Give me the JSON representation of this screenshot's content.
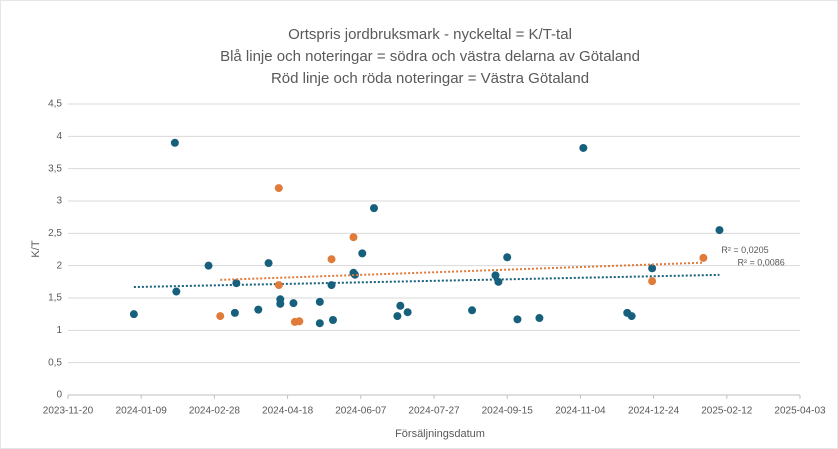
{
  "chart_data": {
    "type": "scatter",
    "title": [
      "Ortspris jordbruksmark - nyckeltal = K/T-tal",
      "Blå linje och noteringar = södra och västra delarna av Götaland",
      "Röd linje och röda noteringar = Västra Götaland"
    ],
    "x_label": "Försäljningsdatum",
    "y_label": "K/T",
    "xlim": [
      "2023-11-20",
      "2025-04-03"
    ],
    "xticks": [
      "2023-11-20",
      "2024-01-09",
      "2024-02-28",
      "2024-04-18",
      "2024-06-07",
      "2024-07-27",
      "2024-09-15",
      "2024-11-04",
      "2024-12-24",
      "2025-02-12",
      "2025-04-03"
    ],
    "ylim": [
      0,
      4.5
    ],
    "yticks": [
      0,
      {
        "value": 0.5,
        "label": "0,5"
      },
      1,
      {
        "value": 1.5,
        "label": "1,5"
      },
      2,
      {
        "value": 2.5,
        "label": "2,5"
      },
      3,
      {
        "value": 3.5,
        "label": "3,5"
      },
      4,
      {
        "value": 4.5,
        "label": "4,5"
      }
    ],
    "grid": true,
    "series": [
      {
        "name": "södra och västra delarna av Götaland",
        "color": "#17607d",
        "trendline_label": "R² = 0,0086",
        "x": [
          "2024-01-04",
          "2024-02-01",
          "2024-02-02",
          "2024-02-24",
          "2024-03-14",
          "2024-03-13",
          "2024-03-29",
          "2024-04-05",
          "2024-04-13",
          "2024-04-13",
          "2024-04-22",
          "2024-05-10",
          "2024-05-10",
          "2024-05-18",
          "2024-05-19",
          "2024-06-02",
          "2024-06-03",
          "2024-06-08",
          "2024-06-16",
          "2024-07-02",
          "2024-07-04",
          "2024-07-09",
          "2024-08-22",
          "2024-09-07",
          "2024-09-09",
          "2024-09-15",
          "2024-09-22",
          "2024-10-07",
          "2024-11-06",
          "2024-12-06",
          "2024-12-09",
          "2024-12-23",
          "2025-02-07"
        ],
        "values": [
          1.25,
          3.9,
          1.6,
          2.0,
          1.73,
          1.27,
          1.32,
          2.04,
          1.48,
          1.41,
          1.42,
          1.44,
          1.11,
          1.7,
          1.16,
          1.89,
          1.86,
          2.19,
          2.89,
          1.22,
          1.38,
          1.28,
          1.31,
          1.85,
          1.75,
          2.13,
          1.17,
          1.19,
          3.82,
          1.27,
          1.22,
          1.96,
          2.55
        ]
      },
      {
        "name": "Västra Götaland",
        "color": "#e07b39",
        "trendline_label": "R² = 0,0205",
        "x": [
          "2024-03-03",
          "2024-04-12",
          "2024-04-12",
          "2024-04-23",
          "2024-04-26",
          "2024-05-18",
          "2024-06-02",
          "2024-12-23",
          "2025-01-27"
        ],
        "values": [
          1.22,
          3.2,
          1.7,
          1.13,
          1.14,
          2.1,
          2.44,
          1.76,
          2.12
        ]
      }
    ]
  }
}
